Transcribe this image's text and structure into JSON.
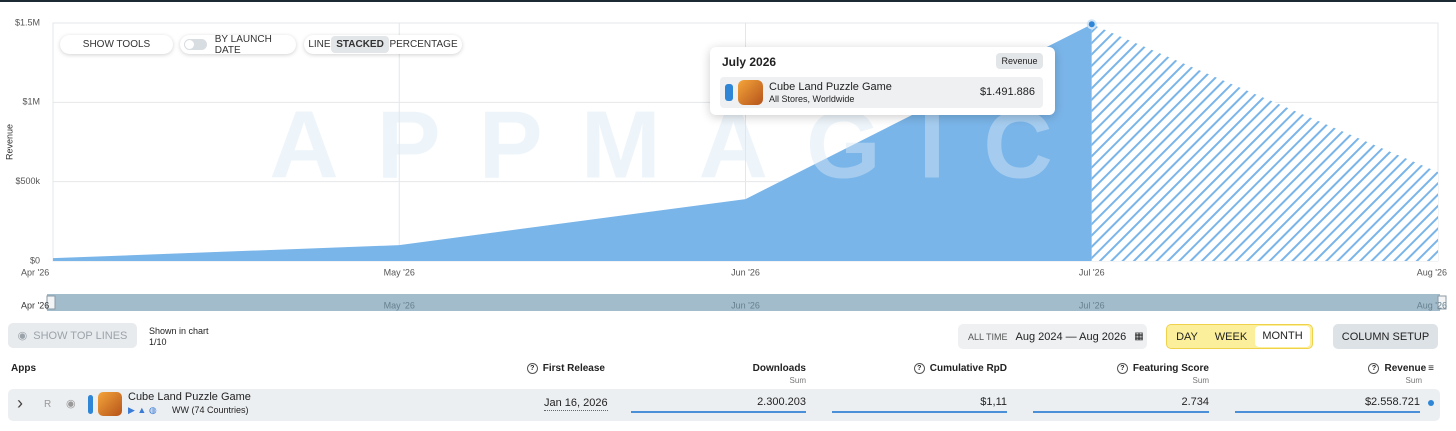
{
  "toolbar": {
    "show_tools": "SHOW TOOLS",
    "by_launch_date": "BY LAUNCH DATE",
    "modes": [
      "LINE",
      "STACKED",
      "PERCENTAGE"
    ]
  },
  "chart_data": {
    "type": "area",
    "watermark": "APPMAGIC",
    "y_label": "Revenue",
    "categories": [
      "Apr '26",
      "May '26",
      "Jun '26",
      "Jul '26",
      "Aug '26"
    ],
    "series": [
      {
        "name": "Cube Land Puzzle Game",
        "color": "#7ab5e9",
        "values": [
          18000,
          100000,
          390000,
          1491886,
          560000
        ]
      }
    ],
    "ylim": [
      0,
      1500000
    ],
    "yticks": [
      {
        "value": 0,
        "label": "$0"
      },
      {
        "value": 500000,
        "label": "$500k"
      },
      {
        "value": 1000000,
        "label": "$1M"
      },
      {
        "value": 1500000,
        "label": "$1.5M"
      }
    ],
    "grid": true
  },
  "tooltip": {
    "title": "July 2026",
    "badge": "Revenue",
    "app": "Cube Land Puzzle Game",
    "store": "All Stores, Worldwide",
    "value": "$1.491.886"
  },
  "controls": {
    "show_top_lines": "SHOW TOP LINES",
    "shown_in_chart": "Shown in chart",
    "shown_count": "1/10",
    "all_time": "ALL TIME",
    "range": "Aug 2024 — Aug 2026",
    "granularity": [
      "DAY",
      "WEEK",
      "MONTH"
    ],
    "column_setup": "COLUMN SETUP"
  },
  "table": {
    "headers": {
      "apps": "Apps",
      "first_release": "First Release",
      "downloads": "Downloads",
      "rpd": "Cumulative RpD",
      "featuring": "Featuring Score",
      "revenue": "Revenue"
    },
    "sum": "Sum",
    "rows": [
      {
        "rank": "R",
        "name": "Cube Land Puzzle Game",
        "region": "WW (74 Countries)",
        "first_release": "Jan 16, 2026",
        "downloads": "2.300.203",
        "rpd": "$1,11",
        "featuring": "2.734",
        "revenue": "$2.558.721"
      }
    ]
  }
}
